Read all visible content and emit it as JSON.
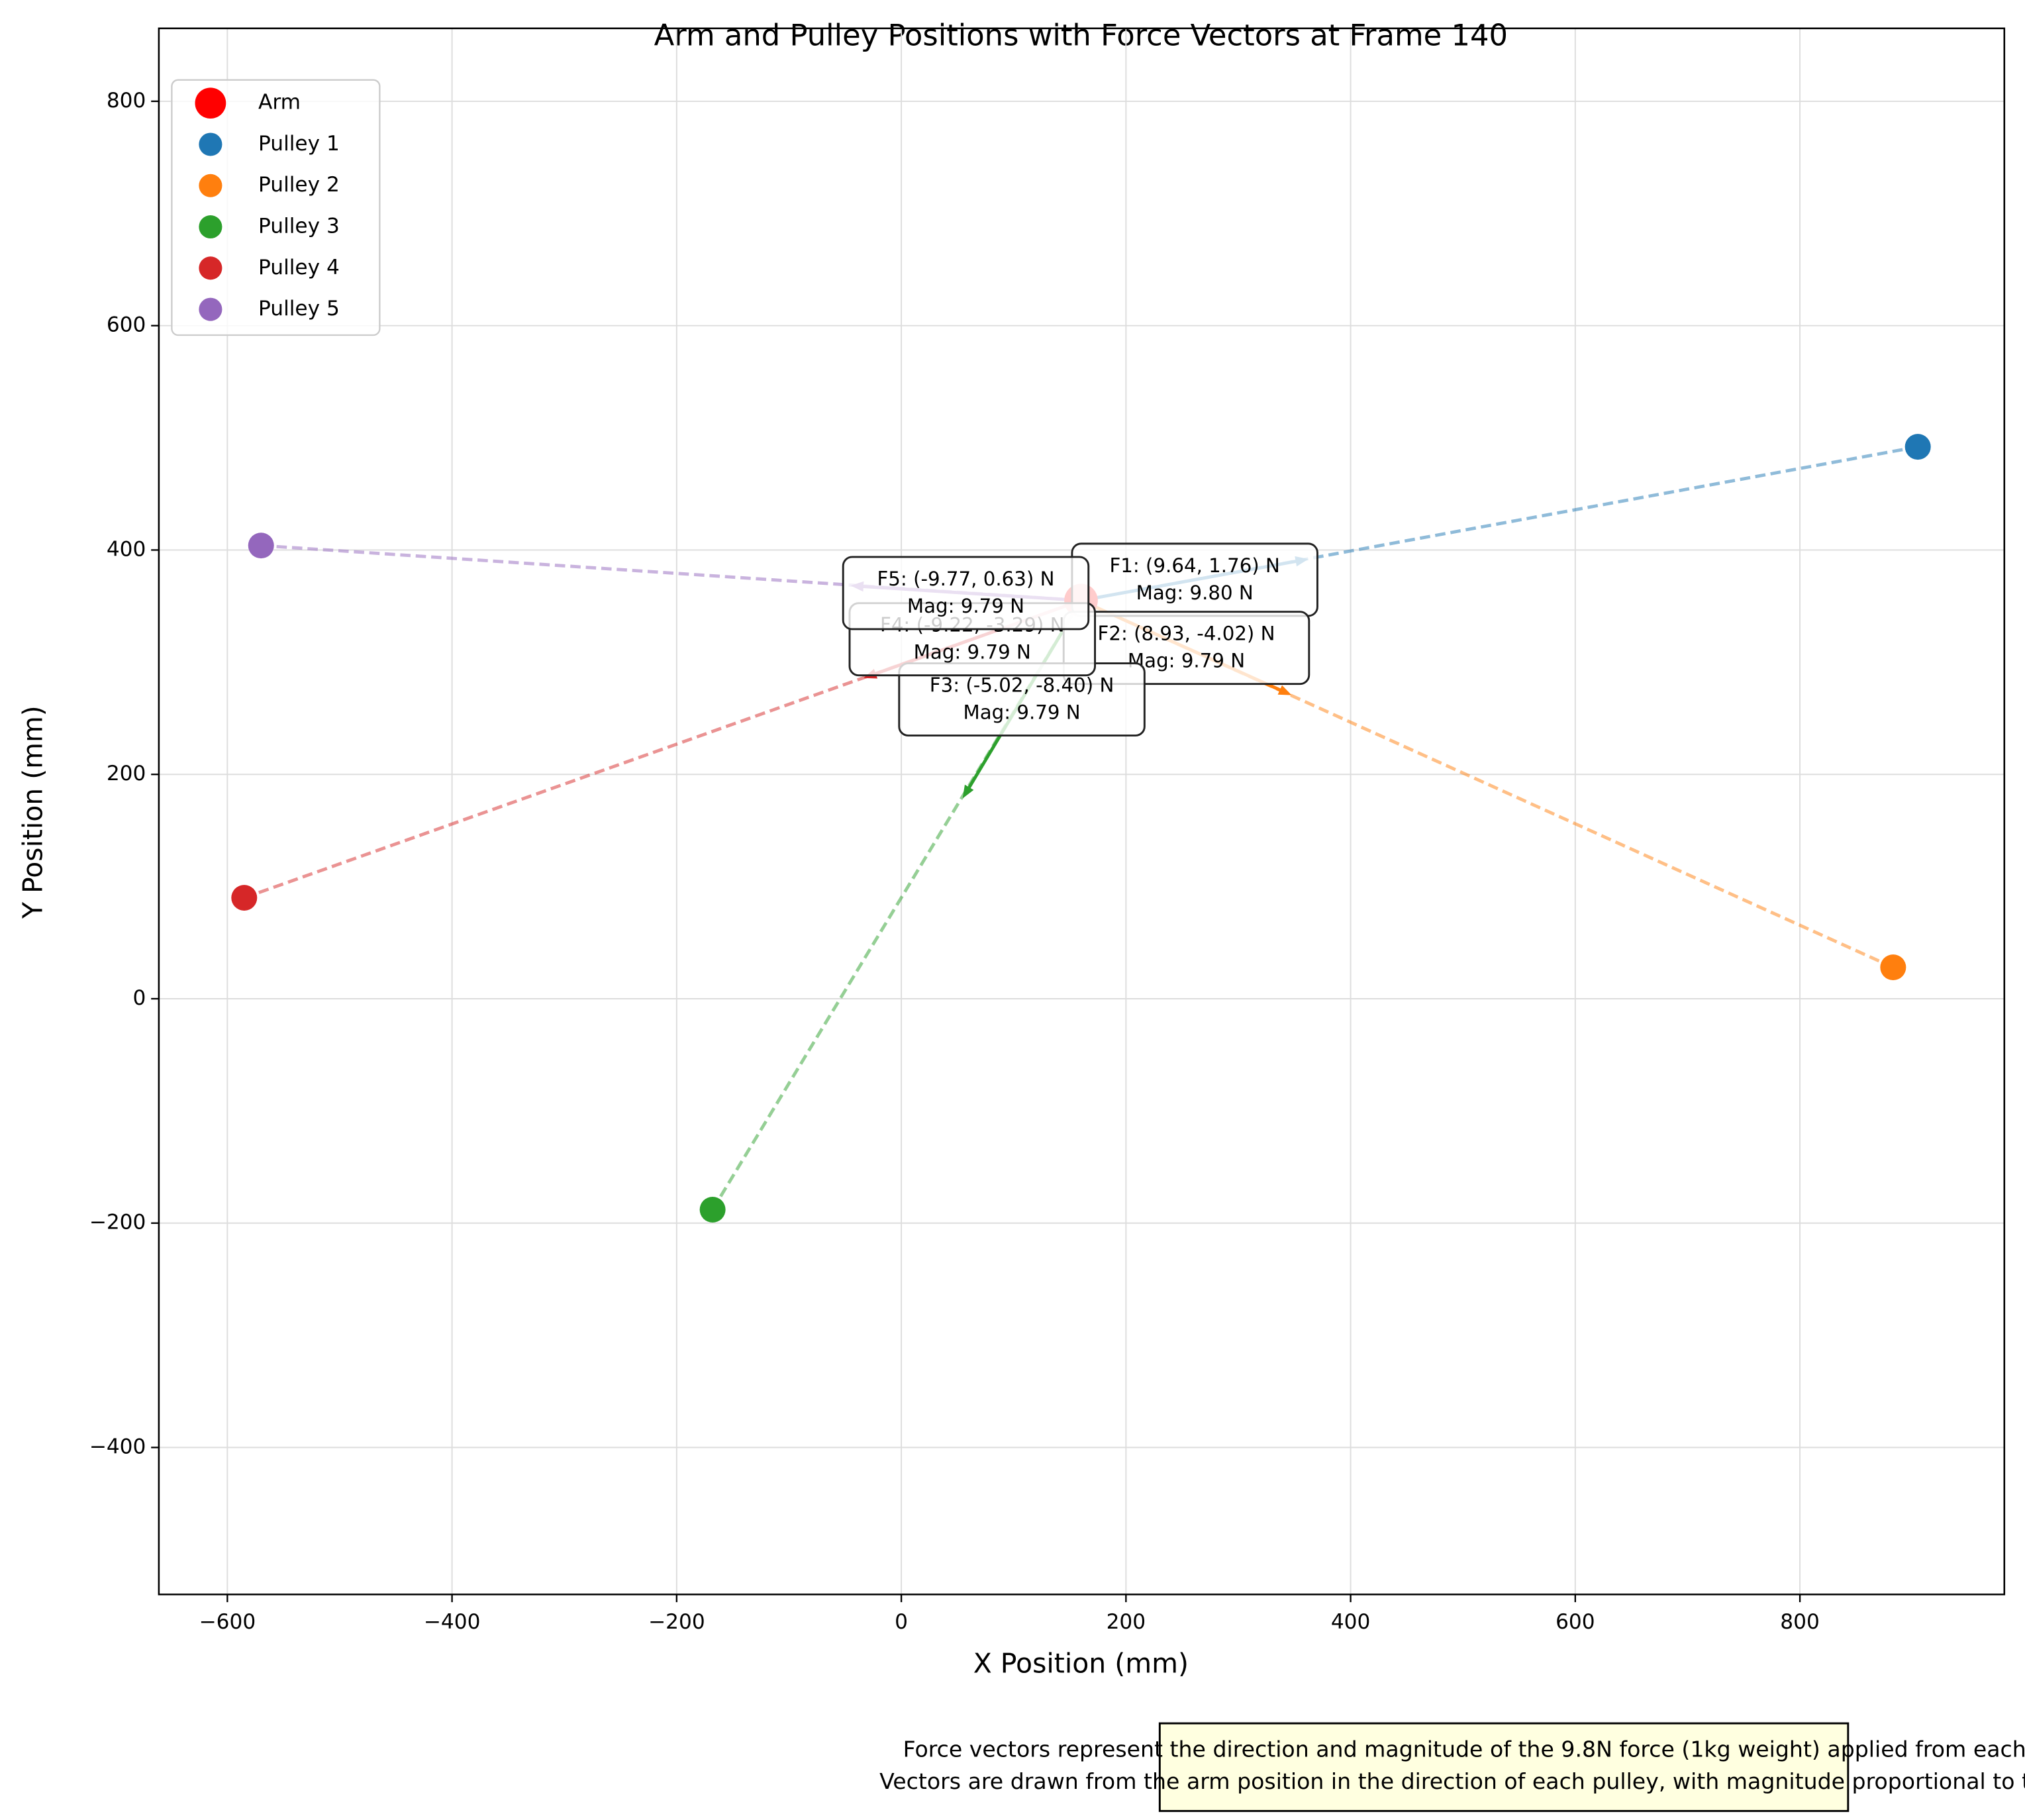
{
  "chart_data": {
    "type": "scatter",
    "title": "Arm and Pulley Positions with Force Vectors at Frame 140",
    "x_label": "X Position (mm)",
    "y_label": "Y Position (mm)",
    "xlim": [
      -661,
      982
    ],
    "ylim": [
      -531,
      865
    ],
    "xticks": [
      {
        "value": -600,
        "label": "−600"
      },
      {
        "value": -400,
        "label": "−400"
      },
      {
        "value": -200,
        "label": "−200"
      },
      0,
      200,
      400,
      600,
      800
    ],
    "yticks": [
      {
        "value": -400,
        "label": "−400"
      },
      {
        "value": -200,
        "label": "−200"
      },
      0,
      200,
      400,
      600,
      800
    ],
    "grid": true,
    "legend": "upper left",
    "series": [
      {
        "name": "Arm",
        "color": "#ff0000",
        "x": [
          160
        ],
        "y": [
          355
        ]
      },
      {
        "name": "Pulley 1",
        "color": "#1f77b4",
        "x": [
          905
        ],
        "y": [
          492
        ]
      },
      {
        "name": "Pulley 2",
        "color": "#ff7f0e",
        "x": [
          883
        ],
        "y": [
          28
        ]
      },
      {
        "name": "Pulley 3",
        "color": "#2ca02c",
        "x": [
          -168
        ],
        "y": [
          -188
        ]
      },
      {
        "name": "Pulley 4",
        "color": "#d62728",
        "x": [
          -585
        ],
        "y": [
          90
        ]
      },
      {
        "name": "Pulley 5",
        "color": "#9467bd",
        "x": [
          -570
        ],
        "y": [
          404
        ]
      }
    ],
    "forces": [
      {
        "fx": 9.64,
        "fy": 1.76,
        "lines": [
          "F1: (9.64, 1.76) N",
          "Mag: 9.80 N"
        ]
      },
      {
        "fx": 8.93,
        "fy": -4.02,
        "lines": [
          "F2: (8.93, -4.02) N",
          "Mag: 9.79 N"
        ]
      },
      {
        "fx": -5.02,
        "fy": -8.4,
        "lines": [
          "F3: (-5.02, -8.40) N",
          "Mag: 9.79 N"
        ]
      },
      {
        "fx": -9.22,
        "fy": -3.29,
        "lines": [
          "F4: (-9.22, -3.29) N",
          "Mag: 9.79 N"
        ]
      },
      {
        "fx": -9.77,
        "fy": 0.63,
        "lines": [
          "F5: (-9.77, 0.63) N",
          "Mag: 9.79 N"
        ]
      }
    ],
    "note": [
      "Force vectors represent the direction and magnitude of the 9.8N force (1kg weight) applied from each pulley.",
      "Vectors are drawn from the arm position in the direction of each pulley, with magnitude proportional to the force."
    ]
  }
}
